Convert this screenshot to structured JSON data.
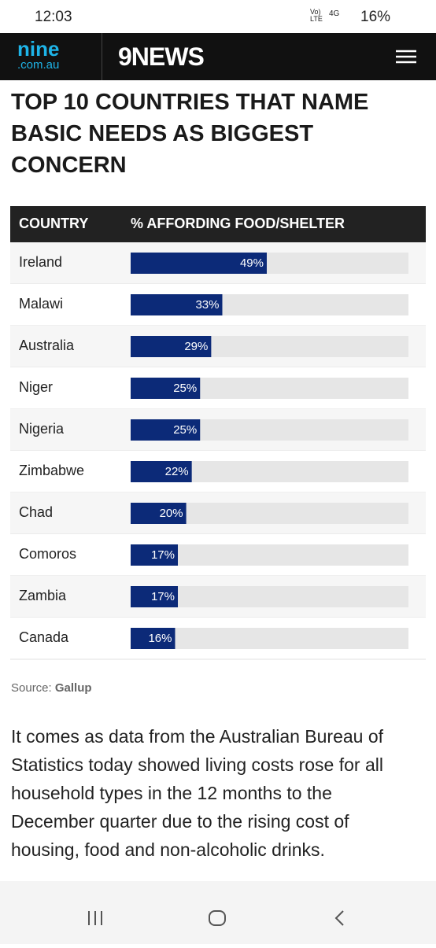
{
  "status_bar": {
    "time": "12:03",
    "volte": "Vo) LTE",
    "network": "4G",
    "battery": "16%"
  },
  "header": {
    "logo_top": "nine",
    "logo_bottom": ".com.au",
    "brand": "9NEWS"
  },
  "chart_data": {
    "type": "bar",
    "orientation": "horizontal",
    "title": "TOP 10 COUNTRIES THAT NAME BASIC NEEDS AS BIGGEST CONCERN",
    "category_header": "COUNTRY",
    "value_header": "% AFFORDING FOOD/SHELTER",
    "categories": [
      "Ireland",
      "Malawi",
      "Australia",
      "Niger",
      "Nigeria",
      "Zimbabwe",
      "Chad",
      "Comoros",
      "Zambia",
      "Canada"
    ],
    "values": [
      49,
      33,
      29,
      25,
      25,
      22,
      20,
      17,
      17,
      16
    ],
    "value_labels": [
      "49%",
      "33%",
      "29%",
      "25%",
      "25%",
      "22%",
      "20%",
      "17%",
      "17%",
      "16%"
    ],
    "xlim": [
      0,
      100
    ],
    "color": "#0c2a78"
  },
  "source": {
    "label": "Source:",
    "name": "Gallup"
  },
  "article": {
    "paragraph": "It comes as data from the Australian Bureau of Statistics today showed living costs rose for all household types in the 12 months to the December quarter due to the rising cost of housing, food and non-alcoholic drinks."
  }
}
